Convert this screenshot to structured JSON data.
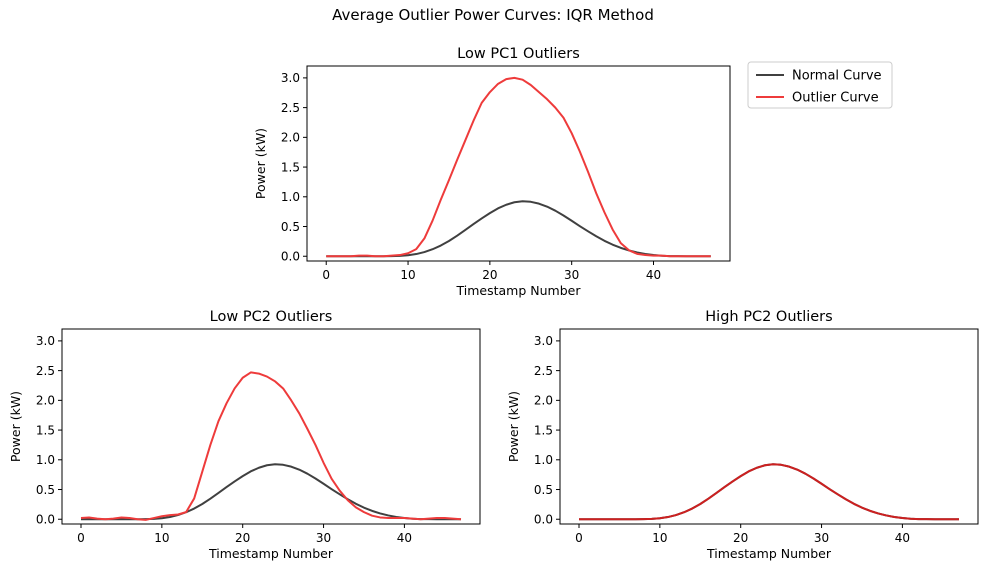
{
  "figure": {
    "suptitle": "Average Outlier Power Curves: IQR Method"
  },
  "legend": {
    "placement": "outside-right of top panel",
    "entries": [
      {
        "label": "Normal Curve",
        "color": "#404040"
      },
      {
        "label": "Outlier Curve",
        "color": "#ee3b3b"
      }
    ]
  },
  "chart_data": [
    {
      "type": "line",
      "title": "Low PC1 Outliers",
      "xlabel": "Timestamp Number",
      "ylabel": "Power (kW)",
      "xlim": [
        -2.35,
        49.35
      ],
      "ylim": [
        -0.08,
        3.2
      ],
      "xticks": [
        0,
        10,
        20,
        30,
        40
      ],
      "yticks": [
        0.0,
        0.5,
        1.0,
        1.5,
        2.0,
        2.5,
        3.0
      ],
      "ytick_labels": [
        "0.0",
        "0.5",
        "1.0",
        "1.5",
        "2.0",
        "2.5",
        "3.0"
      ],
      "grid": false,
      "x": [
        0,
        1,
        2,
        3,
        4,
        5,
        6,
        7,
        8,
        9,
        10,
        11,
        12,
        13,
        14,
        15,
        16,
        17,
        18,
        19,
        20,
        21,
        22,
        23,
        24,
        25,
        26,
        27,
        28,
        29,
        30,
        31,
        32,
        33,
        34,
        35,
        36,
        37,
        38,
        39,
        40,
        41,
        42,
        43,
        44,
        45,
        46,
        47
      ],
      "series": [
        {
          "name": "Normal Curve",
          "color": "#404040",
          "values": [
            0,
            0,
            0,
            0,
            0,
            0,
            0,
            0,
            0.002,
            0.006,
            0.017,
            0.037,
            0.07,
            0.118,
            0.18,
            0.256,
            0.346,
            0.442,
            0.541,
            0.636,
            0.725,
            0.806,
            0.866,
            0.908,
            0.925,
            0.916,
            0.885,
            0.834,
            0.766,
            0.685,
            0.597,
            0.506,
            0.419,
            0.336,
            0.26,
            0.195,
            0.141,
            0.098,
            0.064,
            0.038,
            0.02,
            0.009,
            0.003,
            0.001,
            0,
            0,
            0,
            0
          ]
        },
        {
          "name": "Outlier Curve",
          "color": "#ee3b3b",
          "values": [
            0,
            0,
            0,
            0,
            0.01,
            0.01,
            0,
            0,
            0.01,
            0.02,
            0.05,
            0.12,
            0.3,
            0.6,
            0.95,
            1.28,
            1.62,
            1.95,
            2.28,
            2.58,
            2.76,
            2.9,
            2.98,
            3.0,
            2.97,
            2.88,
            2.76,
            2.64,
            2.5,
            2.33,
            2.07,
            1.76,
            1.42,
            1.06,
            0.74,
            0.45,
            0.22,
            0.1,
            0.04,
            0.02,
            0.01,
            0.01,
            0,
            0,
            0,
            0,
            0,
            0
          ]
        }
      ]
    },
    {
      "type": "line",
      "title": "Low PC2 Outliers",
      "xlabel": "Timestamp Number",
      "ylabel": "Power (kW)",
      "xlim": [
        -2.35,
        49.35
      ],
      "ylim": [
        -0.08,
        3.2
      ],
      "xticks": [
        0,
        10,
        20,
        30,
        40
      ],
      "yticks": [
        0.0,
        0.5,
        1.0,
        1.5,
        2.0,
        2.5,
        3.0
      ],
      "ytick_labels": [
        "0.0",
        "0.5",
        "1.0",
        "1.5",
        "2.0",
        "2.5",
        "3.0"
      ],
      "grid": false,
      "x": [
        0,
        1,
        2,
        3,
        4,
        5,
        6,
        7,
        8,
        9,
        10,
        11,
        12,
        13,
        14,
        15,
        16,
        17,
        18,
        19,
        20,
        21,
        22,
        23,
        24,
        25,
        26,
        27,
        28,
        29,
        30,
        31,
        32,
        33,
        34,
        35,
        36,
        37,
        38,
        39,
        40,
        41,
        42,
        43,
        44,
        45,
        46,
        47
      ],
      "series": [
        {
          "name": "Normal Curve",
          "color": "#404040",
          "values": [
            0,
            0,
            0,
            0,
            0,
            0,
            0,
            0,
            0.002,
            0.006,
            0.017,
            0.037,
            0.07,
            0.118,
            0.18,
            0.256,
            0.346,
            0.442,
            0.541,
            0.636,
            0.725,
            0.806,
            0.866,
            0.908,
            0.925,
            0.916,
            0.885,
            0.834,
            0.766,
            0.685,
            0.597,
            0.506,
            0.419,
            0.336,
            0.26,
            0.195,
            0.141,
            0.098,
            0.064,
            0.038,
            0.02,
            0.009,
            0.003,
            0.001,
            0,
            0,
            0,
            0
          ]
        },
        {
          "name": "Outlier Curve",
          "color": "#ee3b3b",
          "values": [
            0.02,
            0.03,
            0.01,
            0.0,
            0.01,
            0.03,
            0.02,
            0.0,
            -0.01,
            0.02,
            0.05,
            0.07,
            0.08,
            0.12,
            0.35,
            0.8,
            1.25,
            1.65,
            1.95,
            2.2,
            2.38,
            2.47,
            2.45,
            2.4,
            2.32,
            2.2,
            2.0,
            1.78,
            1.52,
            1.25,
            0.95,
            0.68,
            0.48,
            0.32,
            0.2,
            0.12,
            0.06,
            0.03,
            0.02,
            0.02,
            0.02,
            0.01,
            0.0,
            0.01,
            0.02,
            0.02,
            0.01,
            0.0
          ]
        }
      ]
    },
    {
      "type": "line",
      "title": "High PC2 Outliers",
      "xlabel": "Timestamp Number",
      "ylabel": "Power (kW)",
      "xlim": [
        -2.35,
        49.35
      ],
      "ylim": [
        -0.08,
        3.2
      ],
      "xticks": [
        0,
        10,
        20,
        30,
        40
      ],
      "yticks": [
        0.0,
        0.5,
        1.0,
        1.5,
        2.0,
        2.5,
        3.0
      ],
      "ytick_labels": [
        "0.0",
        "0.5",
        "1.0",
        "1.5",
        "2.0",
        "2.5",
        "3.0"
      ],
      "grid": false,
      "x": [
        0,
        1,
        2,
        3,
        4,
        5,
        6,
        7,
        8,
        9,
        10,
        11,
        12,
        13,
        14,
        15,
        16,
        17,
        18,
        19,
        20,
        21,
        22,
        23,
        24,
        25,
        26,
        27,
        28,
        29,
        30,
        31,
        32,
        33,
        34,
        35,
        36,
        37,
        38,
        39,
        40,
        41,
        42,
        43,
        44,
        45,
        46,
        47
      ],
      "series": [
        {
          "name": "Normal Curve",
          "color": "#404040",
          "values": [
            0,
            0,
            0,
            0,
            0,
            0,
            0,
            0,
            0.002,
            0.006,
            0.017,
            0.037,
            0.07,
            0.118,
            0.18,
            0.256,
            0.346,
            0.442,
            0.541,
            0.636,
            0.725,
            0.806,
            0.866,
            0.908,
            0.925,
            0.916,
            0.885,
            0.834,
            0.766,
            0.685,
            0.597,
            0.506,
            0.419,
            0.336,
            0.26,
            0.195,
            0.141,
            0.098,
            0.064,
            0.038,
            0.02,
            0.009,
            0.003,
            0.001,
            0,
            0,
            0,
            0
          ]
        },
        {
          "name": "Outlier Curve",
          "color": "#cc2020",
          "values": [
            0,
            0,
            0,
            0,
            0,
            0,
            0,
            0,
            0.002,
            0.006,
            0.017,
            0.037,
            0.07,
            0.118,
            0.18,
            0.256,
            0.346,
            0.442,
            0.541,
            0.636,
            0.725,
            0.806,
            0.866,
            0.908,
            0.925,
            0.916,
            0.885,
            0.834,
            0.766,
            0.685,
            0.597,
            0.506,
            0.419,
            0.336,
            0.26,
            0.195,
            0.141,
            0.098,
            0.064,
            0.038,
            0.02,
            0.009,
            0.003,
            0.001,
            0,
            0,
            0,
            0
          ]
        }
      ]
    }
  ]
}
